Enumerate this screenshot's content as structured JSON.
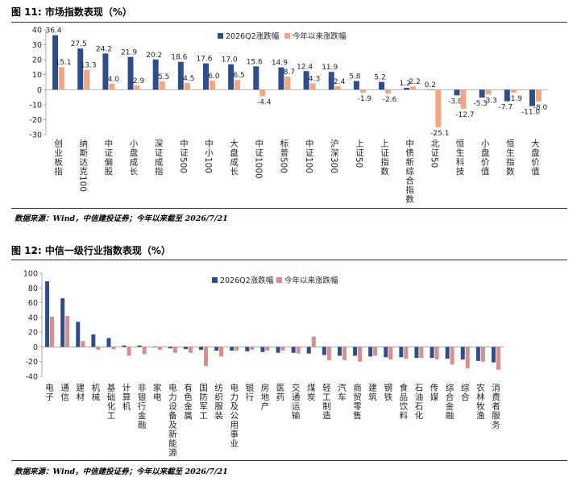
{
  "charts": [
    {
      "figure_title": "图 11: 市场指数表现（%）",
      "source": "数据来源：Wind，中信建投证券；今年以来截至 2026/7/21"
    },
    {
      "figure_title": "图 12: 中信一级行业指数表现（%）",
      "source": "数据来源：Wind，中信建投证券；今年以来截至 2026/7/21"
    }
  ],
  "colors": {
    "q2": "#2f4d8a",
    "ytd": "#f4a582",
    "ytd2": "#d98e8e",
    "rule": "#1f3864",
    "axis": "#999999"
  },
  "chart_data": [
    {
      "type": "bar",
      "title": "图 11: 市场指数表现（%）",
      "categories": [
        "创业板指",
        "纳斯达克100",
        "中证偏股",
        "小盘成长",
        "深证成指",
        "中证500",
        "中小100",
        "大盘成长",
        "中证1000",
        "标普500",
        "中证100",
        "沪深300",
        "上证50",
        "上证指数",
        "中债新综合指数",
        "北证50",
        "恒生科技",
        "小盘价值",
        "恒生指数",
        "大盘价值"
      ],
      "series": [
        {
          "name": "2026Q2涨跌幅",
          "values": [
            36.4,
            27.5,
            24.2,
            21.9,
            20.2,
            18.6,
            17.6,
            17.0,
            15.6,
            14.9,
            12.4,
            11.9,
            5.8,
            5.2,
            1.2,
            0.2,
            -3.8,
            -5.3,
            -7.7,
            -11.0
          ]
        },
        {
          "name": "今年以来涨跌幅",
          "values": [
            15.1,
            13.3,
            4.0,
            2.9,
            5.5,
            4.5,
            6.0,
            6.5,
            -4.4,
            8.7,
            4.3,
            2.4,
            -1.9,
            -2.6,
            2.2,
            -25.1,
            -12.7,
            -3.3,
            -1.9,
            -8.0
          ]
        }
      ],
      "ylim": [
        -30,
        40
      ],
      "yticks": [
        -30,
        -20,
        -10,
        0,
        10,
        20,
        30,
        40
      ],
      "data_labels": true,
      "legend_position": "top-center",
      "grid": false
    },
    {
      "type": "bar",
      "title": "图 12: 中信一级行业指数表现（%）",
      "categories": [
        "电子",
        "通信",
        "建材",
        "机械",
        "基础化工",
        "计算机",
        "非银行金融",
        "家电",
        "电力设备及新能源",
        "有色金属",
        "国防军工",
        "纺织服装",
        "电力及公用事业",
        "银行",
        "房地产",
        "医药",
        "交通运输",
        "煤炭",
        "轻工制造",
        "汽车",
        "商贸零售",
        "建筑",
        "钢铁",
        "食品饮料",
        "石油石化",
        "传媒",
        "综合金融",
        "综合",
        "农林牧渔",
        "消费者服务"
      ],
      "series": [
        {
          "name": "2026Q2涨跌幅",
          "values": [
            89,
            66,
            34,
            17,
            12,
            2,
            2,
            0,
            -2,
            -3,
            -4,
            -5,
            -5,
            -6,
            -7,
            -8,
            -8,
            -9,
            -11,
            -12,
            -12,
            -13,
            -14,
            -14,
            -15,
            -15,
            -16,
            -17,
            -19,
            -21
          ]
        },
        {
          "name": "今年以来涨跌幅",
          "values": [
            41,
            42,
            8,
            -4,
            -3,
            -12,
            -10,
            -4,
            -8,
            -8,
            -26,
            -13,
            -5,
            -4,
            -5,
            -5,
            -9,
            14,
            -18,
            -18,
            -20,
            -12,
            -17,
            -16,
            -15,
            -17,
            -24,
            -29,
            -20,
            -31
          ]
        }
      ],
      "ylim": [
        -40,
        100
      ],
      "yticks": [
        -40,
        -20,
        0,
        20,
        40,
        60,
        80,
        100
      ],
      "data_labels": false,
      "legend_position": "top-center",
      "grid": false
    }
  ]
}
